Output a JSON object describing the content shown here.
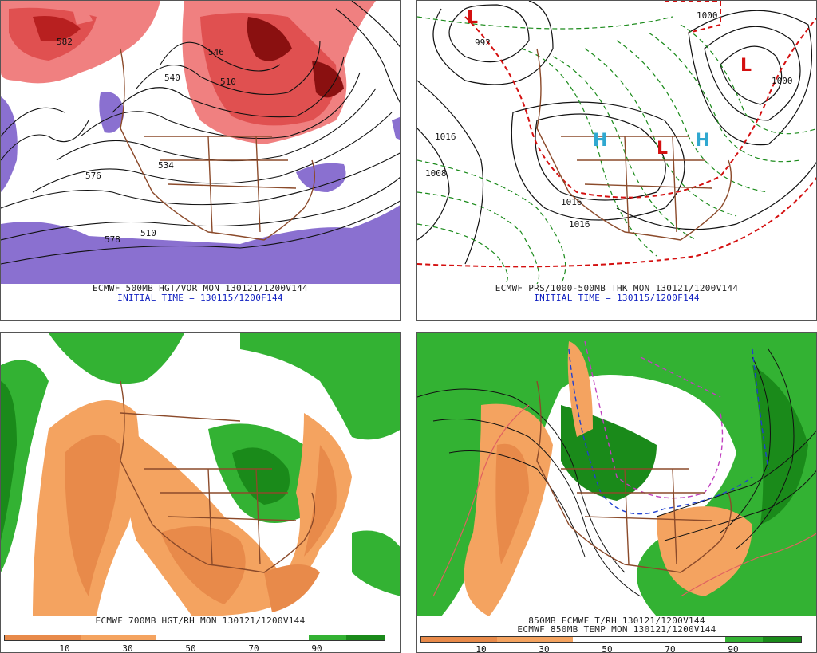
{
  "panels": {
    "tl": {
      "line1": "ECMWF 500MB HGT/VOR MON 130121/1200V144",
      "line2": "INITIAL TIME = 130115/1200F144",
      "labels": [
        "576",
        "578",
        "510",
        "534",
        "540",
        "546",
        "582",
        "510"
      ]
    },
    "tr": {
      "line1": "ECMWF PRS/1000-500MB THK MON 130121/1200V144",
      "line2": "INITIAL TIME = 130115/1200F144",
      "labels": [
        "1016",
        "1008",
        "1016",
        "1016",
        "1000",
        "992",
        "1000"
      ]
    },
    "bl": {
      "line1": "ECMWF 700MB HGT/RH MON 130121/1200V144",
      "scale_ticks": [
        "10",
        "30",
        "50",
        "70",
        "90"
      ]
    },
    "br": {
      "line1": "850MB ECMWF T/RH 130121/1200V144",
      "line2": "ECMWF 850MB TEMP MON 130121/1200V144",
      "scale_ticks": [
        "10",
        "30",
        "50",
        "70",
        "90"
      ]
    }
  },
  "colors": {
    "dry1": "#f4a360",
    "dry2": "#e88a4a",
    "moist1": "#33b233",
    "moist2": "#1a8a1a",
    "vortRed": "#c82020",
    "vortPink": "#f08080",
    "vortPurple": "#8a70d0",
    "coast": "#8b4a2a"
  }
}
